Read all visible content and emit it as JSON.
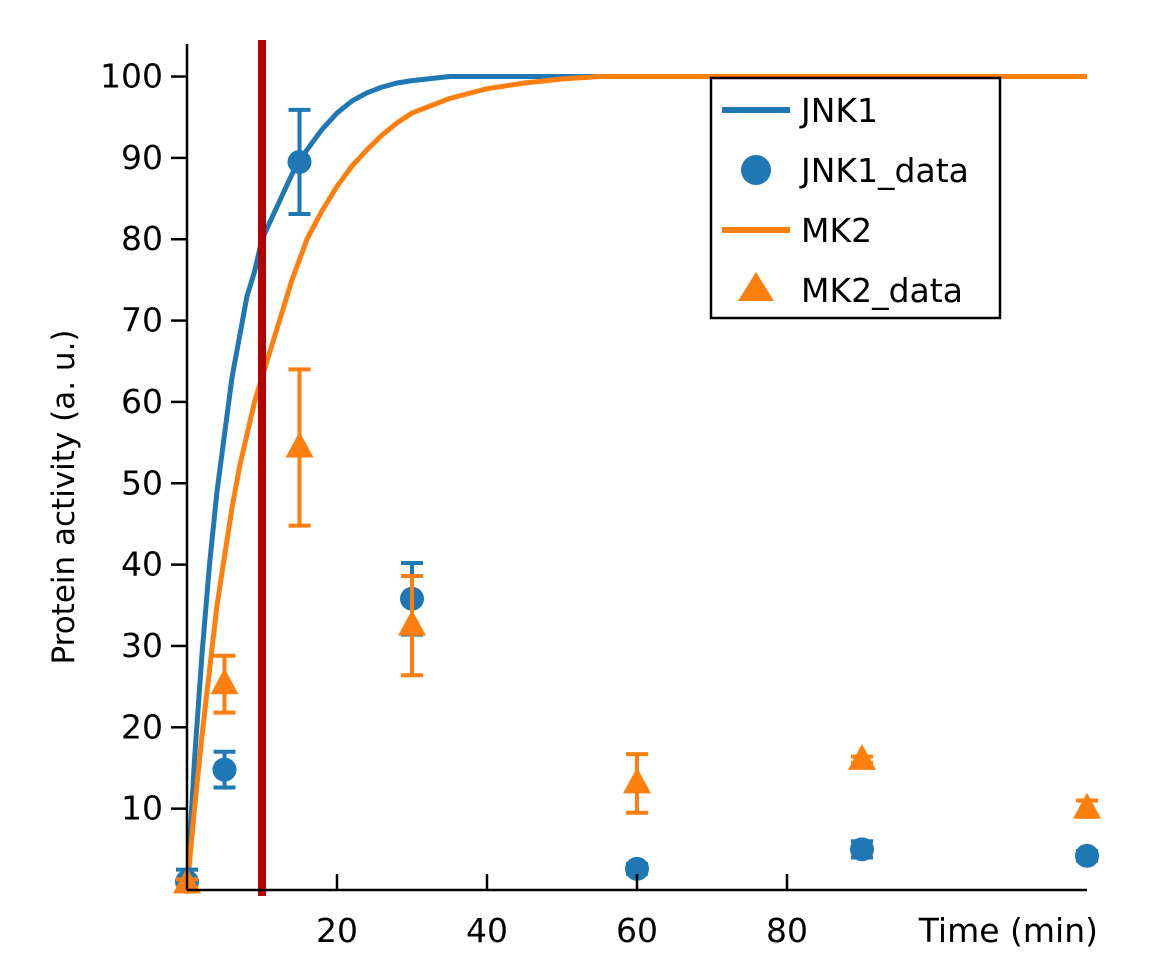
{
  "chart_data": {
    "type": "line",
    "xlabel": "Time (min)",
    "ylabel": "Protein activity (a. u.)",
    "xlim": [
      0,
      120
    ],
    "ylim": [
      0,
      104
    ],
    "xticks": [
      20,
      40,
      60,
      80
    ],
    "yticks": [
      10,
      20,
      30,
      40,
      50,
      60,
      70,
      80,
      90,
      100
    ],
    "grid": false,
    "legend_position": "top-right",
    "vertical_marker": {
      "x": 10,
      "color": "#b30000"
    },
    "series": [
      {
        "name": "JNK1",
        "kind": "line",
        "color": "#1f77b4",
        "x": [
          0,
          1,
          2,
          3,
          4,
          5,
          6,
          7,
          8,
          9,
          10,
          12,
          14,
          16,
          18,
          20,
          22,
          24,
          26,
          28,
          30,
          35,
          40,
          120
        ],
        "y": [
          0,
          16,
          29,
          40,
          49,
          56,
          63,
          68,
          73,
          76,
          80,
          84,
          88,
          91,
          93.5,
          95.5,
          97,
          98,
          98.7,
          99.2,
          99.5,
          100,
          100,
          100
        ]
      },
      {
        "name": "JNK1_data",
        "kind": "scatter",
        "marker": "circle",
        "color": "#1f77b4",
        "x": [
          0,
          5,
          15,
          30,
          60,
          90,
          120
        ],
        "y": [
          1,
          14.8,
          89.5,
          35.8,
          2.6,
          5,
          4.2
        ],
        "yerr": [
          1.5,
          2.2,
          6.4,
          4.4,
          0.6,
          1,
          0.6
        ]
      },
      {
        "name": "MK2",
        "kind": "line",
        "color": "#ff7f0e",
        "x": [
          0,
          1,
          2,
          3,
          4,
          5,
          6,
          7,
          8,
          9,
          10,
          12,
          14,
          16,
          18,
          20,
          22,
          24,
          26,
          28,
          30,
          35,
          40,
          45,
          50,
          55,
          120
        ],
        "y": [
          0,
          10,
          19,
          27,
          35,
          41,
          47,
          52,
          56,
          60,
          63,
          69,
          75,
          80,
          83.5,
          86.5,
          89,
          91,
          92.8,
          94.3,
          95.5,
          97.3,
          98.5,
          99.2,
          99.7,
          100,
          100
        ]
      },
      {
        "name": "MK2_data",
        "kind": "scatter",
        "marker": "triangle",
        "color": "#ff7f0e",
        "x": [
          0,
          5,
          15,
          30,
          60,
          90,
          120
        ],
        "y": [
          0.8,
          25.3,
          54.4,
          32.5,
          13.1,
          16,
          10
        ],
        "yerr": [
          0.5,
          3.5,
          9.6,
          6.1,
          3.6,
          0.4,
          1
        ]
      }
    ]
  }
}
